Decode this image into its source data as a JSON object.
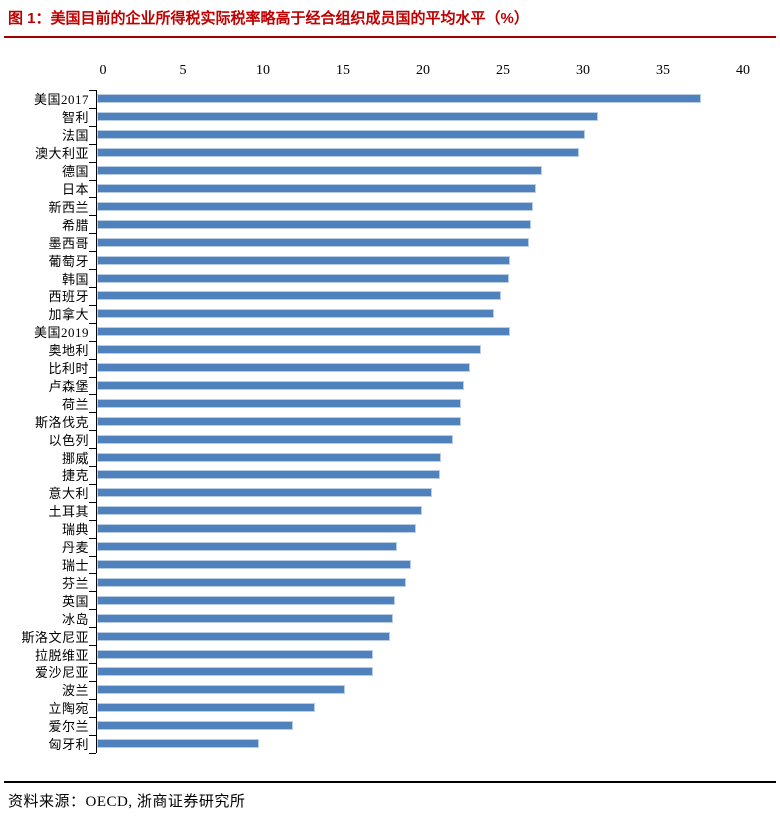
{
  "figure": {
    "title": "图 1：美国目前的企业所得税实际税率略高于经合组织成员国的平均水平（%）",
    "source": "资料来源：OECD, 浙商证券研究所"
  },
  "colors": {
    "title_red": "#c00000",
    "rule_red": "#a00000",
    "bar_fill": "#4f81bd",
    "bar_border": "#b9cde5",
    "axis_black": "#000000"
  },
  "chart_data": {
    "type": "bar",
    "orientation": "horizontal",
    "title": "美国目前的企业所得税实际税率略高于经合组织成员国的平均水平（%）",
    "xlabel": "",
    "ylabel": "",
    "xlim": [
      0,
      40
    ],
    "x_ticks": [
      0,
      5,
      10,
      15,
      20,
      25,
      30,
      35,
      40
    ],
    "grid": false,
    "legend": "none",
    "categories": [
      "美国2017",
      "智利",
      "法国",
      "澳大利亚",
      "德国",
      "日本",
      "新西兰",
      "希腊",
      "墨西哥",
      "葡萄牙",
      "韩国",
      "西班牙",
      "加拿大",
      "美国2019",
      "奥地利",
      "比利时",
      "卢森堡",
      "荷兰",
      "斯洛伐克",
      "以色列",
      "挪威",
      "捷克",
      "意大利",
      "土耳其",
      "瑞典",
      "丹麦",
      "瑞士",
      "芬兰",
      "英国",
      "冰岛",
      "斯洛文尼亚",
      "拉脱维亚",
      "爱沙尼亚",
      "波兰",
      "立陶宛",
      "爱尔兰",
      "匈牙利"
    ],
    "values": [
      37.6,
      31.2,
      30.4,
      30.0,
      27.7,
      27.3,
      27.1,
      27.0,
      26.9,
      25.7,
      25.6,
      25.1,
      24.7,
      25.7,
      23.9,
      23.2,
      22.8,
      22.6,
      22.6,
      22.1,
      21.4,
      21.3,
      20.8,
      20.2,
      19.8,
      18.6,
      19.5,
      19.2,
      18.5,
      18.4,
      18.2,
      17.1,
      17.1,
      15.4,
      13.5,
      12.1,
      10.0
    ]
  }
}
